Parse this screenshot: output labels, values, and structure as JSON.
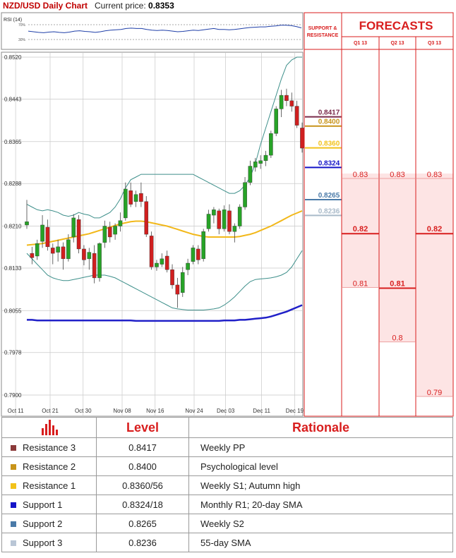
{
  "header": {
    "title": "NZD/USD Daily Chart",
    "price_label": "Current price:",
    "price_value": "0.8353"
  },
  "rsi_label": "RSI (14)",
  "rsi_levels": [
    "70%",
    "30%"
  ],
  "columns": {
    "support_resistance": "SUPPORT & RESISTANCE",
    "forecasts": "FORECASTS",
    "quarters": [
      "Q1 13",
      "Q2 13",
      "Q3 13"
    ]
  },
  "levels_table": {
    "header_level": "Level",
    "header_rationale": "Rationale",
    "rows": [
      {
        "name": "Resistance 3",
        "level": "0.8417",
        "rationale": "Weekly PP",
        "color": "#8b3a3a"
      },
      {
        "name": "Resistance 2",
        "level": "0.8400",
        "rationale": "Psychological level",
        "color": "#c8941a"
      },
      {
        "name": "Resistance 1",
        "level": "0.8360/56",
        "rationale": "Weekly S1; Autumn high",
        "color": "#f2c21a"
      },
      {
        "name": "Support 1",
        "level": "0.8324/18",
        "rationale": "Monthly R1; 20-day SMA",
        "color": "#1414c8"
      },
      {
        "name": "Support 2",
        "level": "0.8265",
        "rationale": "Weekly S2",
        "color": "#4a7aa8"
      },
      {
        "name": "Support 3",
        "level": "0.8236",
        "rationale": "55-day SMA",
        "color": "#b9c6d6"
      }
    ]
  },
  "chart_data": {
    "type": "candlestick",
    "title": "NZD/USD Daily Chart",
    "x_labels": [
      "Oct 11",
      "Oct 21",
      "Oct 30",
      "Nov 08",
      "Nov 16",
      "Nov 24",
      "Dec 03",
      "Dec 11",
      "Dec 19"
    ],
    "y_ticks": [
      "0.8520",
      "0.8443",
      "0.8365",
      "0.8288",
      "0.8210",
      "0.8133",
      "0.8055",
      "0.7978",
      "0.7900"
    ],
    "ylim": [
      0.79,
      0.852
    ],
    "grid": true,
    "candles": [
      [
        0.8212,
        0.8258,
        0.8205,
        0.8218
      ],
      [
        0.816,
        0.8172,
        0.814,
        0.8152
      ],
      [
        0.8155,
        0.8185,
        0.8148,
        0.8178
      ],
      [
        0.8182,
        0.823,
        0.817,
        0.8212
      ],
      [
        0.8208,
        0.8222,
        0.8165,
        0.8172
      ],
      [
        0.817,
        0.8178,
        0.814,
        0.816
      ],
      [
        0.8162,
        0.8185,
        0.8145,
        0.8172
      ],
      [
        0.8172,
        0.818,
        0.813,
        0.815
      ],
      [
        0.815,
        0.8195,
        0.8145,
        0.8185
      ],
      [
        0.819,
        0.8232,
        0.818,
        0.8225
      ],
      [
        0.8222,
        0.823,
        0.816,
        0.8168
      ],
      [
        0.8168,
        0.8175,
        0.8138,
        0.8148
      ],
      [
        0.815,
        0.817,
        0.813,
        0.8162
      ],
      [
        0.816,
        0.8175,
        0.8105,
        0.8115
      ],
      [
        0.8115,
        0.818,
        0.8108,
        0.8178
      ],
      [
        0.818,
        0.822,
        0.817,
        0.821
      ],
      [
        0.8208,
        0.8218,
        0.818,
        0.819
      ],
      [
        0.8195,
        0.8215,
        0.8185,
        0.821
      ],
      [
        0.821,
        0.8235,
        0.82,
        0.822
      ],
      [
        0.8225,
        0.829,
        0.822,
        0.8278
      ],
      [
        0.8275,
        0.829,
        0.8245,
        0.825
      ],
      [
        0.8255,
        0.8275,
        0.8245,
        0.8268
      ],
      [
        0.827,
        0.829,
        0.8245,
        0.8255
      ],
      [
        0.8255,
        0.8265,
        0.819,
        0.8195
      ],
      [
        0.8192,
        0.82,
        0.813,
        0.8135
      ],
      [
        0.8135,
        0.8148,
        0.8128,
        0.8142
      ],
      [
        0.814,
        0.816,
        0.8135,
        0.815
      ],
      [
        0.8155,
        0.8165,
        0.8125,
        0.813
      ],
      [
        0.813,
        0.814,
        0.8095,
        0.8102
      ],
      [
        0.8102,
        0.8115,
        0.806,
        0.8085
      ],
      [
        0.8088,
        0.8135,
        0.808,
        0.8125
      ],
      [
        0.813,
        0.815,
        0.812,
        0.8142
      ],
      [
        0.8145,
        0.8175,
        0.814,
        0.817
      ],
      [
        0.8168,
        0.8175,
        0.814,
        0.8148
      ],
      [
        0.815,
        0.8205,
        0.8145,
        0.82
      ],
      [
        0.8205,
        0.824,
        0.82,
        0.8232
      ],
      [
        0.823,
        0.8245,
        0.8215,
        0.824
      ],
      [
        0.8238,
        0.8242,
        0.8195,
        0.8205
      ],
      [
        0.8205,
        0.8248,
        0.82,
        0.824
      ],
      [
        0.8238,
        0.825,
        0.8195,
        0.82
      ],
      [
        0.82,
        0.8215,
        0.818,
        0.821
      ],
      [
        0.821,
        0.825,
        0.8205,
        0.8245
      ],
      [
        0.8245,
        0.83,
        0.824,
        0.829
      ],
      [
        0.829,
        0.833,
        0.8285,
        0.832
      ],
      [
        0.8318,
        0.8335,
        0.831,
        0.8328
      ],
      [
        0.8325,
        0.834,
        0.8315,
        0.833
      ],
      [
        0.833,
        0.8348,
        0.832,
        0.834
      ],
      [
        0.834,
        0.8385,
        0.8335,
        0.838
      ],
      [
        0.838,
        0.843,
        0.8375,
        0.8425
      ],
      [
        0.8425,
        0.846,
        0.841,
        0.845
      ],
      [
        0.845,
        0.8462,
        0.843,
        0.844
      ],
      [
        0.844,
        0.8455,
        0.842,
        0.843
      ],
      [
        0.843,
        0.844,
        0.839,
        0.8395
      ],
      [
        0.839,
        0.84,
        0.8345,
        0.8353
      ]
    ],
    "sma55": [
      0.8175,
      0.8176,
      0.8177,
      0.8178,
      0.818,
      0.8182,
      0.8184,
      0.8186,
      0.8188,
      0.819,
      0.8192,
      0.8194,
      0.8196,
      0.8199,
      0.8202,
      0.8205,
      0.8208,
      0.8211,
      0.8214,
      0.8216,
      0.8218,
      0.8219,
      0.8219,
      0.8218,
      0.8216,
      0.8214,
      0.8212,
      0.821,
      0.8207,
      0.8204,
      0.8201,
      0.8198,
      0.8195,
      0.8193,
      0.8191,
      0.819,
      0.819,
      0.819,
      0.819,
      0.819,
      0.819,
      0.8191,
      0.8193,
      0.8195,
      0.8198,
      0.8202,
      0.8206,
      0.821,
      0.8215,
      0.822,
      0.8225,
      0.823,
      0.8234,
      0.8238
    ],
    "sma200": [
      0.8038,
      0.8038,
      0.8037,
      0.8037,
      0.8037,
      0.8037,
      0.8037,
      0.8037,
      0.8037,
      0.8037,
      0.8037,
      0.8037,
      0.8037,
      0.8037,
      0.8037,
      0.8037,
      0.8037,
      0.8037,
      0.8037,
      0.8037,
      0.8037,
      0.8036,
      0.8036,
      0.8036,
      0.8036,
      0.8036,
      0.8036,
      0.8036,
      0.8036,
      0.8036,
      0.8036,
      0.8036,
      0.8036,
      0.8036,
      0.8036,
      0.8036,
      0.8036,
      0.8036,
      0.8037,
      0.8037,
      0.8037,
      0.8038,
      0.8038,
      0.8039,
      0.804,
      0.8041,
      0.8042,
      0.8044,
      0.8047,
      0.805,
      0.8053,
      0.8057,
      0.8061,
      0.8065
    ],
    "bb_upper": [
      0.825,
      0.8245,
      0.824,
      0.8238,
      0.824,
      0.8238,
      0.8235,
      0.823,
      0.8228,
      0.823,
      0.8235,
      0.8232,
      0.823,
      0.8225,
      0.8225,
      0.823,
      0.8235,
      0.8245,
      0.826,
      0.828,
      0.8295,
      0.83,
      0.8305,
      0.8305,
      0.8305,
      0.8305,
      0.8305,
      0.8305,
      0.8305,
      0.8305,
      0.8305,
      0.8305,
      0.8305,
      0.83,
      0.8295,
      0.829,
      0.8285,
      0.828,
      0.8275,
      0.827,
      0.827,
      0.8275,
      0.8285,
      0.83,
      0.8325,
      0.836,
      0.839,
      0.842,
      0.845,
      0.848,
      0.8505,
      0.8515,
      0.852,
      0.852
    ],
    "bb_lower": [
      0.816,
      0.815,
      0.814,
      0.813,
      0.812,
      0.8115,
      0.8112,
      0.811,
      0.811,
      0.8112,
      0.8114,
      0.8116,
      0.8118,
      0.812,
      0.812,
      0.812,
      0.8118,
      0.8115,
      0.811,
      0.8105,
      0.81,
      0.8095,
      0.809,
      0.8085,
      0.808,
      0.8075,
      0.807,
      0.8065,
      0.806,
      0.8058,
      0.8057,
      0.8056,
      0.8056,
      0.8056,
      0.8056,
      0.8057,
      0.8058,
      0.806,
      0.8065,
      0.8072,
      0.808,
      0.809,
      0.81,
      0.8108,
      0.8112,
      0.8113,
      0.8114,
      0.8115,
      0.8117,
      0.812,
      0.8125,
      0.8135,
      0.815,
      0.8165
    ],
    "rsi": [
      52,
      50,
      48,
      47,
      49,
      50,
      48,
      47,
      49,
      52,
      53,
      51,
      50,
      48,
      50,
      53,
      55,
      56,
      57,
      60,
      61,
      60,
      60,
      57,
      55,
      54,
      55,
      54,
      52,
      50,
      51,
      53,
      55,
      54,
      56,
      58,
      60,
      57,
      57,
      56,
      57,
      59,
      61,
      63,
      64,
      65,
      65,
      67,
      68,
      70,
      70,
      69,
      66,
      62
    ],
    "levels": [
      {
        "value": "0.8417",
        "color": "#7a2a4a"
      },
      {
        "value": "0.8400",
        "color": "#c8941a"
      },
      {
        "value": "0.8360",
        "color": "#f2c21a"
      },
      {
        "value": "0.8324",
        "color": "#1414c8"
      },
      {
        "value": "0.8265",
        "color": "#4a7aa8"
      },
      {
        "value": "0.8236",
        "color": "#a9bac9"
      }
    ],
    "forecasts": [
      {
        "quarter": "Q1 13",
        "high": "0.83",
        "mid": "0.82",
        "low": "0.81"
      },
      {
        "quarter": "Q2 13",
        "high": "0.83",
        "mid": "0.81",
        "low": "0.8"
      },
      {
        "quarter": "Q3 13",
        "high": "0.83",
        "mid": "0.82",
        "low": "0.79"
      }
    ]
  }
}
